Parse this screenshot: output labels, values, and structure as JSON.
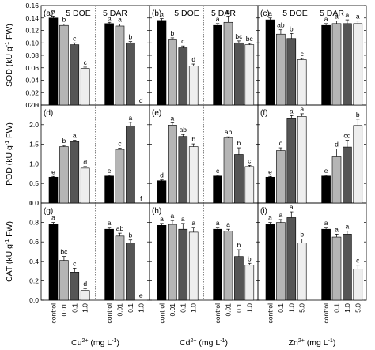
{
  "chart_data": {
    "type": "bar",
    "bar_colors": [
      "#000000",
      "#b5b5b5",
      "#555555",
      "#eeeeee"
    ],
    "group_labels": [
      "5 DOE",
      "5 DAR"
    ],
    "rows": [
      {
        "ylabel": "SOD (kU g",
        "ylabel_sup": "-1",
        "ylabel_end": " FW)",
        "ylim": [
          0,
          0.16
        ],
        "ticks": [
          "0.00",
          "0.02",
          "0.04",
          "0.06",
          "0.08",
          "0.10",
          "0.12",
          "0.14",
          "0.16"
        ],
        "tick_values": [
          0,
          0.02,
          0.04,
          0.06,
          0.08,
          0.1,
          0.12,
          0.14,
          0.16
        ]
      },
      {
        "ylabel": "POD (kU g",
        "ylabel_sup": "-1",
        "ylabel_end": " FW)",
        "ylim": [
          0,
          2.5
        ],
        "ticks": [
          "0.0",
          "0.5",
          "1.0",
          "1.5",
          "2.0",
          "2.5"
        ],
        "tick_values": [
          0,
          0.5,
          1.0,
          1.5,
          2.0,
          2.5
        ]
      },
      {
        "ylabel": "CAT (kU g",
        "ylabel_sup": "-1",
        "ylabel_end": " FW)",
        "ylim": [
          0,
          1.0
        ],
        "ticks": [
          "0.0",
          "0.2",
          "0.4",
          "0.6",
          "0.8",
          "1.0"
        ],
        "tick_values": [
          0,
          0.2,
          0.4,
          0.6,
          0.8,
          1.0
        ]
      }
    ],
    "columns": [
      {
        "xlabel": "Cu",
        "xlabel_sup": "2+",
        "xlabel_end": " (mg L",
        "xlabel_sup2": "-1",
        "xlabel_tail": ")",
        "categories": [
          "control",
          "0.01",
          "0.1",
          "1.0"
        ]
      },
      {
        "xlabel": "Cd",
        "xlabel_sup": "2+",
        "xlabel_end": " (mg L",
        "xlabel_sup2": "-1",
        "xlabel_tail": ")",
        "categories": [
          "control",
          "0.01",
          "0.1",
          "1.0"
        ]
      },
      {
        "xlabel": "Zn",
        "xlabel_sup": "2+",
        "xlabel_end": " (mg L",
        "xlabel_sup2": "-1",
        "xlabel_tail": ")",
        "categories": [
          "control",
          "0.1",
          "1.0",
          "5.0"
        ]
      }
    ],
    "panels": [
      {
        "label": "(a)",
        "row": 0,
        "col": 0,
        "groups": [
          {
            "values": [
              0.14,
              0.128,
              0.097,
              0.059
            ],
            "errors": [
              0.003,
              0.002,
              0.003,
              0.002
            ],
            "letters": [
              "a",
              "b",
              "c",
              "c"
            ]
          },
          {
            "values": [
              0.131,
              0.127,
              0.1,
              0.0
            ],
            "errors": [
              0.002,
              0.003,
              0.002,
              0
            ],
            "letters": [
              "a",
              "a",
              "b",
              "d"
            ]
          }
        ]
      },
      {
        "label": "(b)",
        "row": 0,
        "col": 1,
        "groups": [
          {
            "values": [
              0.136,
              0.106,
              0.092,
              0.063
            ],
            "errors": [
              0.003,
              0.002,
              0.003,
              0.003
            ],
            "letters": [
              "a",
              "b",
              "c",
              "d"
            ]
          },
          {
            "values": [
              0.128,
              0.133,
              0.1,
              0.097
            ],
            "errors": [
              0.003,
              0.01,
              0.003,
              0.002
            ],
            "letters": [
              "a",
              "a",
              "bc",
              "bc"
            ]
          }
        ]
      },
      {
        "label": "(c)",
        "row": 0,
        "col": 2,
        "groups": [
          {
            "values": [
              0.137,
              0.114,
              0.107,
              0.073
            ],
            "errors": [
              0.003,
              0.007,
              0.008,
              0.002
            ],
            "letters": [
              "a",
              "ab",
              "b",
              "c"
            ]
          },
          {
            "values": [
              0.128,
              0.131,
              0.131,
              0.131
            ],
            "errors": [
              0.003,
              0.004,
              0.006,
              0.004
            ],
            "letters": [
              "a",
              "a",
              "a",
              "a"
            ]
          }
        ]
      },
      {
        "label": "(d)",
        "row": 1,
        "col": 0,
        "groups": [
          {
            "values": [
              0.66,
              1.44,
              1.57,
              0.89
            ],
            "errors": [
              0.02,
              0.03,
              0.03,
              0.04
            ],
            "letters": [
              "e",
              "b",
              "a",
              "d"
            ]
          },
          {
            "values": [
              0.69,
              1.37,
              1.97,
              0.0
            ],
            "errors": [
              0.02,
              0.03,
              0.09,
              0
            ],
            "letters": [
              "e",
              "c",
              "a",
              "f"
            ]
          }
        ]
      },
      {
        "label": "(e)",
        "row": 1,
        "col": 1,
        "groups": [
          {
            "values": [
              0.57,
              1.99,
              1.7,
              1.44
            ],
            "errors": [
              0.02,
              0.06,
              0.05,
              0.07
            ],
            "letters": [
              "d",
              "a",
              "ab",
              "b"
            ]
          },
          {
            "values": [
              0.69,
              1.66,
              1.24,
              0.93
            ],
            "errors": [
              0.02,
              0.03,
              0.17,
              0.03
            ],
            "letters": [
              "c",
              "ab",
              "b",
              "c"
            ]
          }
        ]
      },
      {
        "label": "(f)",
        "row": 1,
        "col": 2,
        "groups": [
          {
            "values": [
              0.66,
              1.34,
              2.17,
              2.21
            ],
            "errors": [
              0.02,
              0.07,
              0.06,
              0.07
            ],
            "letters": [
              "e",
              "c",
              "a",
              "a"
            ]
          },
          {
            "values": [
              0.69,
              1.18,
              1.43,
              1.98
            ],
            "errors": [
              0.02,
              0.2,
              0.17,
              0.16
            ],
            "letters": [
              "e",
              "d",
              "cd",
              "b"
            ]
          }
        ]
      },
      {
        "label": "(g)",
        "row": 2,
        "col": 0,
        "groups": [
          {
            "values": [
              0.78,
              0.41,
              0.29,
              0.1
            ],
            "errors": [
              0.02,
              0.04,
              0.04,
              0.02
            ],
            "letters": [
              "a",
              "bc",
              "c",
              "d"
            ]
          },
          {
            "values": [
              0.73,
              0.66,
              0.59,
              0.0
            ],
            "errors": [
              0.02,
              0.03,
              0.03,
              0
            ],
            "letters": [
              "a",
              "ab",
              "b",
              "e"
            ]
          }
        ]
      },
      {
        "label": "(h)",
        "row": 2,
        "col": 1,
        "groups": [
          {
            "values": [
              0.77,
              0.78,
              0.73,
              0.7
            ],
            "errors": [
              0.02,
              0.04,
              0.06,
              0.05
            ],
            "letters": [
              "a",
              "a",
              "a",
              "a"
            ]
          },
          {
            "values": [
              0.73,
              0.71,
              0.45,
              0.36
            ],
            "errors": [
              0.02,
              0.02,
              0.07,
              0.02
            ],
            "letters": [
              "a",
              "a",
              "b",
              "b"
            ]
          }
        ]
      },
      {
        "label": "(i)",
        "row": 2,
        "col": 2,
        "groups": [
          {
            "values": [
              0.78,
              0.8,
              0.85,
              0.59
            ],
            "errors": [
              0.02,
              0.03,
              0.06,
              0.04
            ],
            "letters": [
              "a",
              "a",
              "a",
              "b"
            ]
          },
          {
            "values": [
              0.73,
              0.65,
              0.68,
              0.32
            ],
            "errors": [
              0.02,
              0.03,
              0.03,
              0.04
            ],
            "letters": [
              "a",
              "a",
              "a",
              "c"
            ]
          }
        ]
      }
    ]
  }
}
